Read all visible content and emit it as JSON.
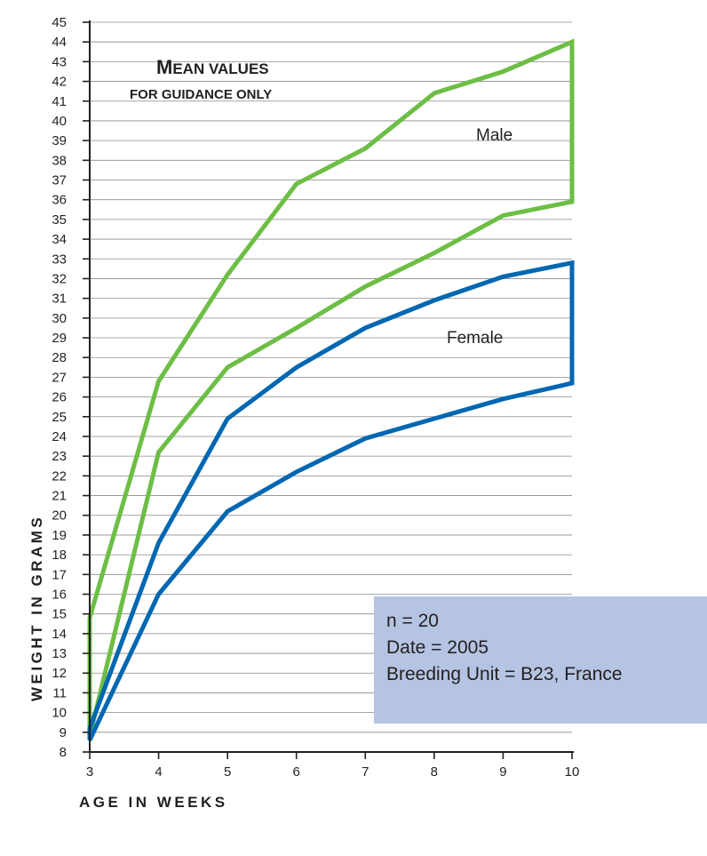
{
  "chart_data": {
    "type": "line",
    "title": "Mean values",
    "subtitle": "FOR GUIDANCE ONLY",
    "xlabel": "AGE IN WEEKS",
    "ylabel": "WEIGHT IN GRAMS",
    "xlim": [
      3,
      10
    ],
    "ylim": [
      8,
      45
    ],
    "x_ticks": [
      3,
      4,
      5,
      6,
      7,
      8,
      9,
      10
    ],
    "y_ticks": [
      8,
      9,
      10,
      11,
      12,
      13,
      14,
      15,
      16,
      17,
      18,
      19,
      20,
      21,
      22,
      23,
      24,
      25,
      26,
      27,
      28,
      29,
      30,
      31,
      32,
      33,
      34,
      35,
      36,
      37,
      38,
      39,
      40,
      41,
      42,
      43,
      44,
      45
    ],
    "grid": true,
    "series": [
      {
        "name": "Male",
        "color": "#6dbe45",
        "x": [
          3,
          4,
          5,
          6,
          7,
          8,
          9,
          10
        ],
        "upper": [
          14.8,
          26.8,
          32.2,
          36.8,
          38.6,
          41.4,
          42.5,
          44.0
        ],
        "lower": [
          8.8,
          23.2,
          27.5,
          29.5,
          31.6,
          33.3,
          35.2,
          35.9
        ]
      },
      {
        "name": "Female",
        "color": "#0067b1",
        "x": [
          3,
          4,
          5,
          6,
          7,
          8,
          9,
          10
        ],
        "upper": [
          9.2,
          18.6,
          24.9,
          27.5,
          29.5,
          30.9,
          32.1,
          32.8
        ],
        "lower": [
          8.6,
          16.0,
          20.2,
          22.2,
          23.9,
          24.9,
          25.9,
          26.7
        ]
      }
    ]
  },
  "info_box": {
    "n": "n = 20",
    "date": "Date = 2005",
    "breeding_unit": "Breeding Unit = B23, France"
  }
}
